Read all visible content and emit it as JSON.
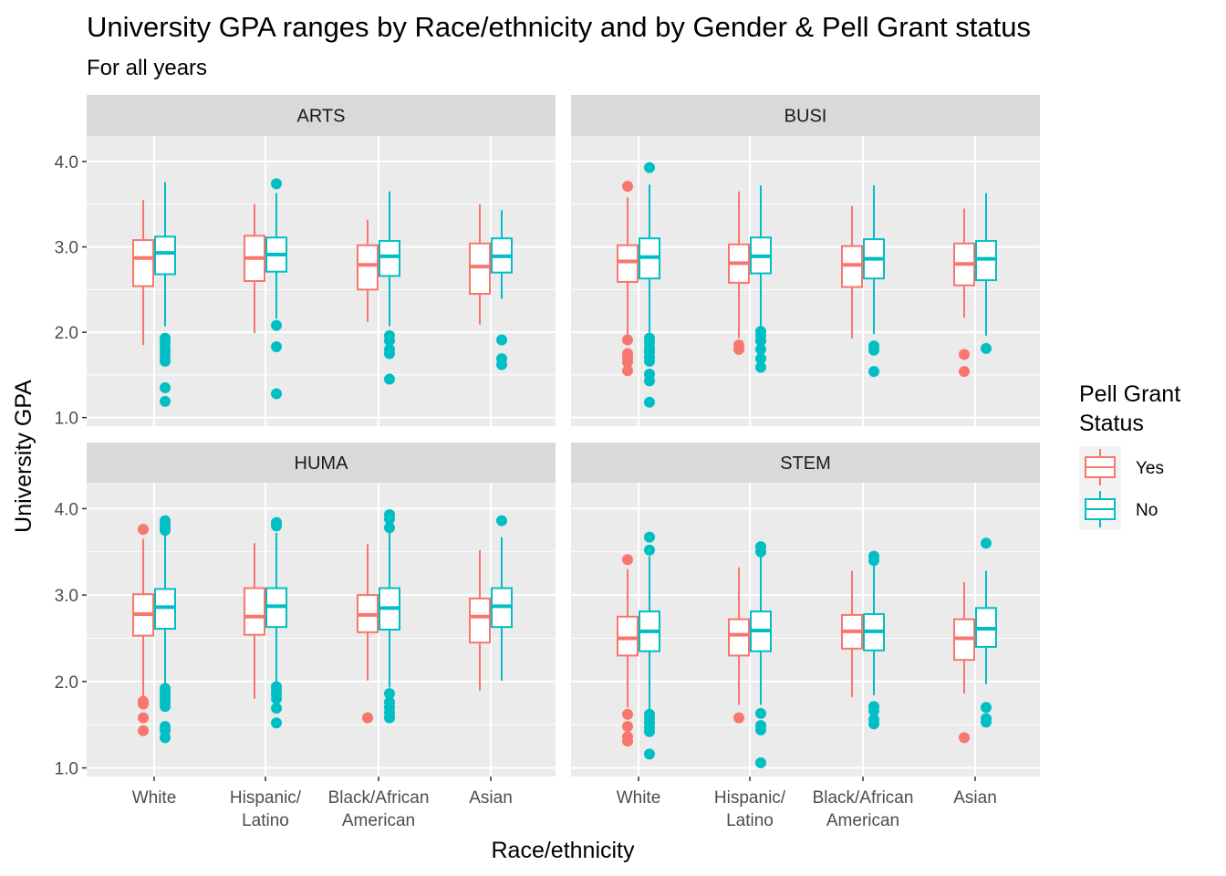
{
  "chart_data": {
    "type": "boxplot",
    "title": "University GPA ranges by Race/ethnicity and by Gender & Pell Grant status",
    "subtitle": "For all years",
    "xlabel": "Race/ethnicity",
    "ylabel": "University GPA",
    "ylim": [
      0.9,
      4.3
    ],
    "y_ticks": [
      "1.0",
      "2.0",
      "3.0",
      "4.0"
    ],
    "categories": [
      "White",
      "Hispanic/ Latino",
      "Black/African American",
      "Asian"
    ],
    "category_lines": [
      [
        "White"
      ],
      [
        "Hispanic/",
        "Latino"
      ],
      [
        "Black/African",
        "American"
      ],
      [
        "Asian"
      ]
    ],
    "grid": true,
    "legend": {
      "title_lines": [
        "Pell Grant",
        "Status"
      ],
      "placement": "right",
      "entries": [
        {
          "label": "Yes",
          "color": "#F8766D"
        },
        {
          "label": "No",
          "color": "#00BFC4"
        }
      ]
    },
    "series": [
      {
        "name": "Yes",
        "color": "#F8766D"
      },
      {
        "name": "No",
        "color": "#00BFC4"
      }
    ],
    "panels": [
      {
        "label": "ARTS",
        "boxes": [
          {
            "category": "White",
            "series": "Yes",
            "lower_whisker": 1.85,
            "q1": 2.54,
            "median": 2.87,
            "q3": 3.08,
            "upper_whisker": 3.55,
            "outliers": []
          },
          {
            "category": "White",
            "series": "No",
            "lower_whisker": 2.07,
            "q1": 2.68,
            "median": 2.93,
            "q3": 3.12,
            "upper_whisker": 3.76,
            "outliers": [
              1.93,
              1.88,
              1.82,
              1.77,
              1.72,
              1.66,
              1.35,
              1.19
            ]
          },
          {
            "category": "Hispanic/ Latino",
            "series": "Yes",
            "lower_whisker": 1.99,
            "q1": 2.6,
            "median": 2.87,
            "q3": 3.13,
            "upper_whisker": 3.5,
            "outliers": []
          },
          {
            "category": "Hispanic/ Latino",
            "series": "No",
            "lower_whisker": 2.16,
            "q1": 2.71,
            "median": 2.91,
            "q3": 3.11,
            "upper_whisker": 3.63,
            "outliers": [
              3.74,
              2.08,
              1.83,
              1.28
            ]
          },
          {
            "category": "Black/African American",
            "series": "Yes",
            "lower_whisker": 2.12,
            "q1": 2.5,
            "median": 2.79,
            "q3": 3.02,
            "upper_whisker": 3.32,
            "outliers": []
          },
          {
            "category": "Black/African American",
            "series": "No",
            "lower_whisker": 2.07,
            "q1": 2.66,
            "median": 2.89,
            "q3": 3.07,
            "upper_whisker": 3.65,
            "outliers": [
              1.96,
              1.9,
              1.8,
              1.75,
              1.45
            ]
          },
          {
            "category": "Asian",
            "series": "Yes",
            "lower_whisker": 2.09,
            "q1": 2.45,
            "median": 2.77,
            "q3": 3.04,
            "upper_whisker": 3.5,
            "outliers": []
          },
          {
            "category": "Asian",
            "series": "No",
            "lower_whisker": 2.39,
            "q1": 2.7,
            "median": 2.89,
            "q3": 3.1,
            "upper_whisker": 3.43,
            "outliers": [
              1.91,
              1.69,
              1.62
            ]
          }
        ]
      },
      {
        "label": "BUSI",
        "boxes": [
          {
            "category": "White",
            "series": "Yes",
            "lower_whisker": 1.93,
            "q1": 2.59,
            "median": 2.83,
            "q3": 3.02,
            "upper_whisker": 3.58,
            "outliers": [
              3.71,
              1.91,
              1.75,
              1.7,
              1.65,
              1.55
            ]
          },
          {
            "category": "White",
            "series": "No",
            "lower_whisker": 1.95,
            "q1": 2.63,
            "median": 2.88,
            "q3": 3.1,
            "upper_whisker": 3.73,
            "outliers": [
              3.93,
              1.93,
              1.88,
              1.82,
              1.77,
              1.71,
              1.66,
              1.51,
              1.43,
              1.18
            ]
          },
          {
            "category": "Hispanic/ Latino",
            "series": "Yes",
            "lower_whisker": 1.93,
            "q1": 2.58,
            "median": 2.81,
            "q3": 3.03,
            "upper_whisker": 3.65,
            "outliers": [
              1.85,
              1.8
            ]
          },
          {
            "category": "Hispanic/ Latino",
            "series": "No",
            "lower_whisker": 2.04,
            "q1": 2.69,
            "median": 2.89,
            "q3": 3.11,
            "upper_whisker": 3.72,
            "outliers": [
              2.01,
              1.96,
              1.9,
              1.8,
              1.69,
              1.59
            ]
          },
          {
            "category": "Black/African American",
            "series": "Yes",
            "lower_whisker": 1.93,
            "q1": 2.53,
            "median": 2.79,
            "q3": 3.01,
            "upper_whisker": 3.48,
            "outliers": []
          },
          {
            "category": "Black/African American",
            "series": "No",
            "lower_whisker": 1.98,
            "q1": 2.63,
            "median": 2.86,
            "q3": 3.09,
            "upper_whisker": 3.72,
            "outliers": [
              1.84,
              1.79,
              1.54
            ]
          },
          {
            "category": "Asian",
            "series": "Yes",
            "lower_whisker": 2.17,
            "q1": 2.55,
            "median": 2.8,
            "q3": 3.04,
            "upper_whisker": 3.45,
            "outliers": [
              1.74,
              1.54
            ]
          },
          {
            "category": "Asian",
            "series": "No",
            "lower_whisker": 1.96,
            "q1": 2.61,
            "median": 2.86,
            "q3": 3.07,
            "upper_whisker": 3.63,
            "outliers": [
              1.81
            ]
          }
        ]
      },
      {
        "label": "HUMA",
        "boxes": [
          {
            "category": "White",
            "series": "Yes",
            "lower_whisker": 1.81,
            "q1": 2.53,
            "median": 2.78,
            "q3": 3.01,
            "upper_whisker": 3.65,
            "outliers": [
              3.76,
              1.77,
              1.74,
              1.58,
              1.43
            ]
          },
          {
            "category": "White",
            "series": "No",
            "lower_whisker": 1.95,
            "q1": 2.61,
            "median": 2.86,
            "q3": 3.07,
            "upper_whisker": 3.72,
            "outliers": [
              3.86,
              3.82,
              3.78,
              3.75,
              1.92,
              1.88,
              1.84,
              1.8,
              1.76,
              1.71,
              1.48,
              1.43,
              1.35
            ]
          },
          {
            "category": "Hispanic/ Latino",
            "series": "Yes",
            "lower_whisker": 1.8,
            "q1": 2.54,
            "median": 2.75,
            "q3": 3.08,
            "upper_whisker": 3.6,
            "outliers": []
          },
          {
            "category": "Hispanic/ Latino",
            "series": "No",
            "lower_whisker": 1.96,
            "q1": 2.63,
            "median": 2.87,
            "q3": 3.08,
            "upper_whisker": 3.72,
            "outliers": [
              3.84,
              3.8,
              1.94,
              1.89,
              1.85,
              1.8,
              1.69,
              1.52
            ]
          },
          {
            "category": "Black/African American",
            "series": "Yes",
            "lower_whisker": 2.01,
            "q1": 2.57,
            "median": 2.77,
            "q3": 3.0,
            "upper_whisker": 3.59,
            "outliers": [
              1.58
            ]
          },
          {
            "category": "Black/African American",
            "series": "No",
            "lower_whisker": 1.93,
            "q1": 2.6,
            "median": 2.85,
            "q3": 3.08,
            "upper_whisker": 3.72,
            "outliers": [
              3.93,
              3.88,
              3.78,
              1.86,
              1.76,
              1.7,
              1.64,
              1.58
            ]
          },
          {
            "category": "Asian",
            "series": "Yes",
            "lower_whisker": 1.89,
            "q1": 2.45,
            "median": 2.75,
            "q3": 2.96,
            "upper_whisker": 3.52,
            "outliers": []
          },
          {
            "category": "Asian",
            "series": "No",
            "lower_whisker": 2.01,
            "q1": 2.63,
            "median": 2.87,
            "q3": 3.08,
            "upper_whisker": 3.67,
            "outliers": [
              3.86
            ]
          }
        ]
      },
      {
        "label": "STEM",
        "boxes": [
          {
            "category": "White",
            "series": "Yes",
            "lower_whisker": 1.7,
            "q1": 2.3,
            "median": 2.5,
            "q3": 2.75,
            "upper_whisker": 3.3,
            "outliers": [
              3.41,
              1.62,
              1.48,
              1.36,
              1.31
            ]
          },
          {
            "category": "White",
            "series": "No",
            "lower_whisker": 1.66,
            "q1": 2.35,
            "median": 2.58,
            "q3": 2.81,
            "upper_whisker": 3.45,
            "outliers": [
              3.67,
              3.52,
              1.62,
              1.57,
              1.52,
              1.47,
              1.42,
              1.16
            ]
          },
          {
            "category": "Hispanic/ Latino",
            "series": "Yes",
            "lower_whisker": 1.73,
            "q1": 2.3,
            "median": 2.54,
            "q3": 2.72,
            "upper_whisker": 3.32,
            "outliers": [
              1.58
            ]
          },
          {
            "category": "Hispanic/ Latino",
            "series": "No",
            "lower_whisker": 1.73,
            "q1": 2.35,
            "median": 2.59,
            "q3": 2.81,
            "upper_whisker": 3.45,
            "outliers": [
              3.56,
              3.5,
              1.63,
              1.49,
              1.44,
              1.06
            ]
          },
          {
            "category": "Black/African American",
            "series": "Yes",
            "lower_whisker": 1.82,
            "q1": 2.38,
            "median": 2.58,
            "q3": 2.77,
            "upper_whisker": 3.28,
            "outliers": []
          },
          {
            "category": "Black/African American",
            "series": "No",
            "lower_whisker": 1.84,
            "q1": 2.36,
            "median": 2.58,
            "q3": 2.78,
            "upper_whisker": 3.35,
            "outliers": [
              3.45,
              3.4,
              1.71,
              1.66,
              1.56,
              1.51
            ]
          },
          {
            "category": "Asian",
            "series": "Yes",
            "lower_whisker": 1.86,
            "q1": 2.25,
            "median": 2.5,
            "q3": 2.72,
            "upper_whisker": 3.15,
            "outliers": [
              1.35
            ]
          },
          {
            "category": "Asian",
            "series": "No",
            "lower_whisker": 1.97,
            "q1": 2.4,
            "median": 2.61,
            "q3": 2.85,
            "upper_whisker": 3.28,
            "outliers": [
              3.6,
              1.7,
              1.57,
              1.53
            ]
          }
        ]
      }
    ]
  }
}
